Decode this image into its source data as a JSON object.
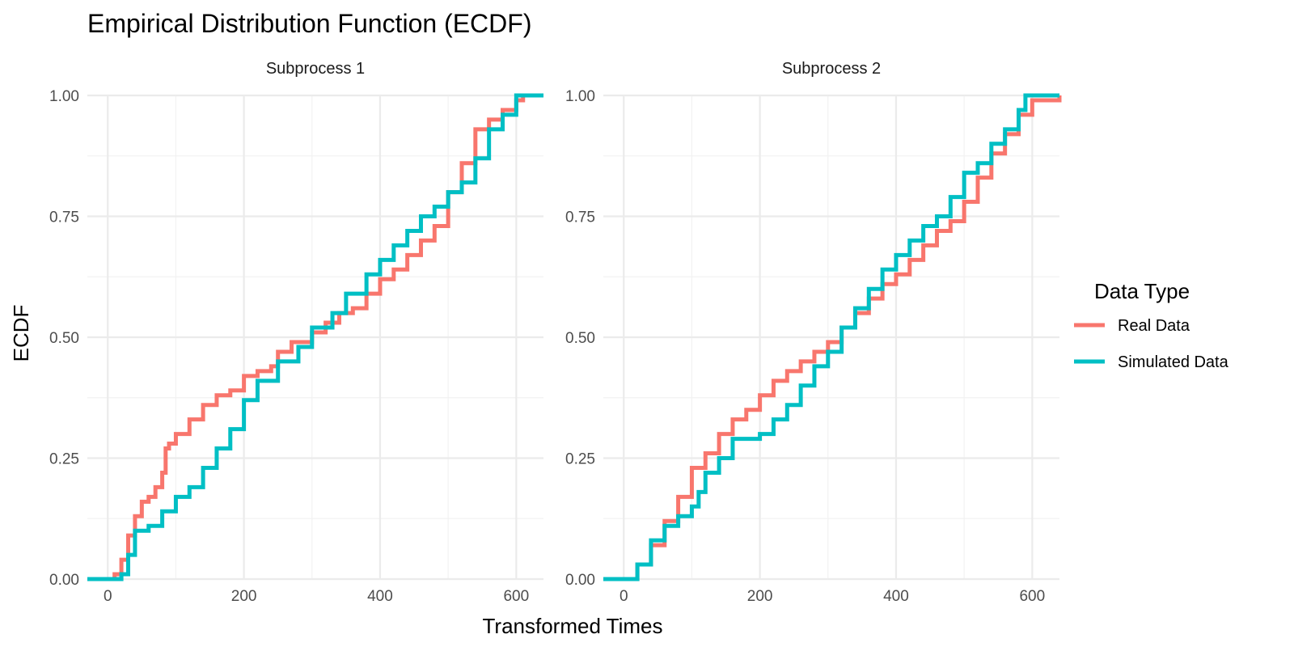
{
  "chart_data": {
    "type": "line",
    "title": "Empirical Distribution Function (ECDF)",
    "xlabel": "Transformed Times",
    "ylabel": "ECDF",
    "xlim": [
      -30,
      640
    ],
    "ylim": [
      0,
      1
    ],
    "xticks": [
      0,
      200,
      400,
      600
    ],
    "xtick_labels": [
      "0",
      "200",
      "400",
      "600"
    ],
    "yticks": [
      0,
      0.25,
      0.5,
      0.75,
      1
    ],
    "ytick_labels": [
      "0.00",
      "0.25",
      "0.50",
      "0.75",
      "1.00"
    ],
    "grid": true,
    "legend": {
      "title": "Data Type",
      "position": "right",
      "entries": [
        {
          "label": "Real Data",
          "color": "#F8766D"
        },
        {
          "label": "Simulated Data",
          "color": "#00BFC4"
        }
      ]
    },
    "panels": [
      {
        "label": "Subprocess 1",
        "series": [
          {
            "name": "Real Data",
            "color": "#F8766D",
            "x": [
              -30,
              10,
              20,
              30,
              40,
              50,
              60,
              70,
              80,
              85,
              90,
              100,
              120,
              140,
              160,
              180,
              200,
              220,
              240,
              250,
              270,
              300,
              320,
              340,
              360,
              380,
              400,
              420,
              440,
              460,
              480,
              500,
              520,
              540,
              560,
              580,
              600,
              610,
              640
            ],
            "y": [
              0,
              0.01,
              0.04,
              0.09,
              0.13,
              0.16,
              0.17,
              0.19,
              0.22,
              0.27,
              0.28,
              0.3,
              0.33,
              0.36,
              0.38,
              0.39,
              0.42,
              0.43,
              0.44,
              0.47,
              0.49,
              0.51,
              0.53,
              0.55,
              0.56,
              0.59,
              0.62,
              0.64,
              0.67,
              0.7,
              0.73,
              0.8,
              0.86,
              0.93,
              0.95,
              0.97,
              0.99,
              1.0,
              1.0
            ]
          },
          {
            "name": "Simulated Data",
            "color": "#00BFC4",
            "x": [
              -30,
              20,
              30,
              40,
              60,
              80,
              100,
              120,
              140,
              160,
              180,
              200,
              220,
              250,
              280,
              300,
              330,
              350,
              380,
              400,
              420,
              440,
              460,
              480,
              500,
              520,
              540,
              560,
              580,
              600,
              640
            ],
            "y": [
              0,
              0.01,
              0.05,
              0.1,
              0.11,
              0.14,
              0.17,
              0.19,
              0.23,
              0.27,
              0.31,
              0.37,
              0.41,
              0.45,
              0.48,
              0.52,
              0.55,
              0.59,
              0.63,
              0.66,
              0.69,
              0.72,
              0.75,
              0.77,
              0.8,
              0.82,
              0.87,
              0.93,
              0.96,
              1.0,
              1.0
            ]
          }
        ]
      },
      {
        "label": "Subprocess 2",
        "series": [
          {
            "name": "Real Data",
            "color": "#F8766D",
            "x": [
              -30,
              0,
              20,
              40,
              60,
              80,
              100,
              120,
              140,
              160,
              180,
              200,
              220,
              240,
              260,
              280,
              300,
              320,
              340,
              360,
              380,
              400,
              420,
              440,
              460,
              480,
              500,
              520,
              540,
              560,
              580,
              600,
              640
            ],
            "y": [
              0,
              0,
              0.03,
              0.07,
              0.12,
              0.17,
              0.23,
              0.26,
              0.3,
              0.33,
              0.35,
              0.38,
              0.41,
              0.43,
              0.45,
              0.47,
              0.49,
              0.52,
              0.55,
              0.58,
              0.61,
              0.63,
              0.66,
              0.69,
              0.72,
              0.74,
              0.78,
              0.83,
              0.88,
              0.92,
              0.96,
              0.99,
              1.0
            ]
          },
          {
            "name": "Simulated Data",
            "color": "#00BFC4",
            "x": [
              -30,
              0,
              20,
              40,
              60,
              80,
              100,
              110,
              120,
              140,
              160,
              180,
              200,
              220,
              240,
              260,
              280,
              300,
              320,
              340,
              360,
              380,
              400,
              420,
              440,
              460,
              480,
              500,
              520,
              540,
              560,
              580,
              590,
              640
            ],
            "y": [
              0,
              0,
              0.03,
              0.08,
              0.11,
              0.13,
              0.15,
              0.18,
              0.22,
              0.25,
              0.29,
              0.29,
              0.3,
              0.33,
              0.36,
              0.4,
              0.44,
              0.47,
              0.52,
              0.56,
              0.6,
              0.64,
              0.67,
              0.7,
              0.73,
              0.75,
              0.79,
              0.84,
              0.86,
              0.9,
              0.93,
              0.97,
              1.0,
              1.0
            ]
          }
        ]
      }
    ]
  }
}
